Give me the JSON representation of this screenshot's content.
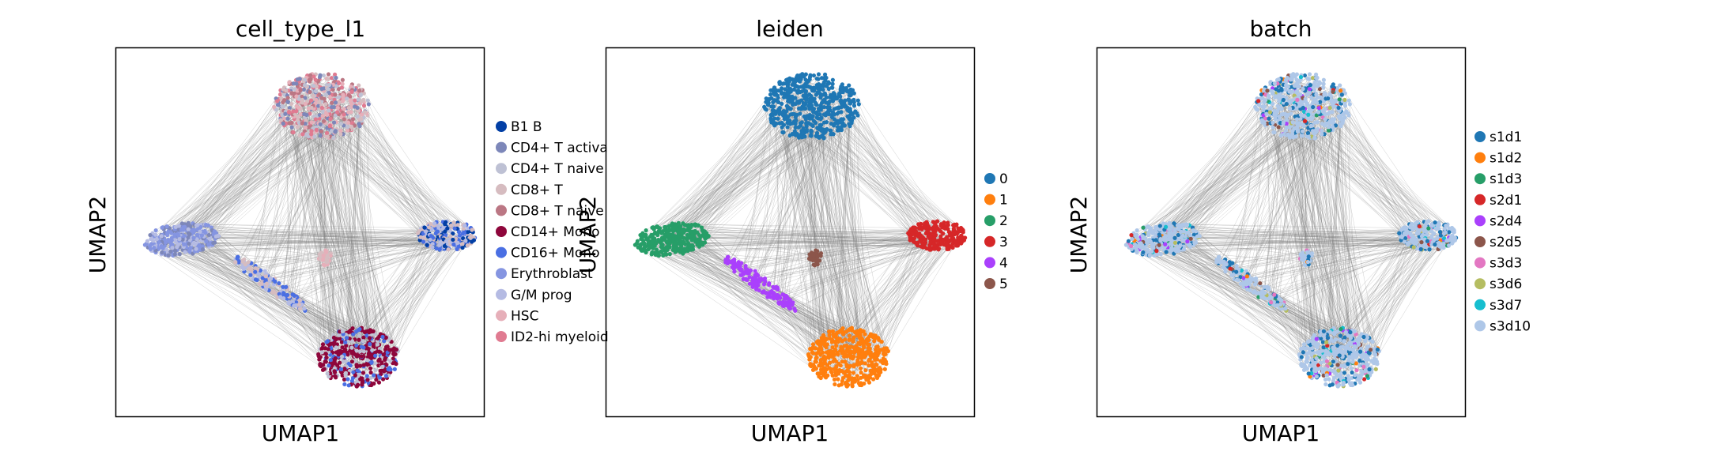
{
  "chart_data": [
    {
      "type": "scatter",
      "title": "cell_type_l1",
      "xlabel": "UMAP1",
      "ylabel": "UMAP2",
      "legend_placement": "right (outside)",
      "grid": false,
      "legend": [
        {
          "label": "B1 B",
          "color": "#023fa5"
        },
        {
          "label": "CD4+ T activa",
          "color": "#7d87b9"
        },
        {
          "label": "CD4+ T naive",
          "color": "#bec1d4"
        },
        {
          "label": "CD8+ T",
          "color": "#d6bcc0"
        },
        {
          "label": "CD8+ T naive",
          "color": "#bb7784"
        },
        {
          "label": "CD14+ Mono",
          "color": "#8e063b"
        },
        {
          "label": "CD16+ Mono",
          "color": "#4a6fe3"
        },
        {
          "label": "Erythroblast",
          "color": "#8595e1"
        },
        {
          "label": "G/M prog",
          "color": "#b5bbe3"
        },
        {
          "label": "HSC",
          "color": "#e6afb9"
        },
        {
          "label": "ID2-hi myeloid",
          "color": "#e07b91"
        }
      ]
    },
    {
      "type": "scatter",
      "title": "leiden",
      "xlabel": "UMAP1",
      "ylabel": "UMAP2",
      "legend_placement": "right (outside)",
      "grid": false,
      "legend": [
        {
          "label": "0",
          "color": "#1f77b4"
        },
        {
          "label": "1",
          "color": "#ff7f0e"
        },
        {
          "label": "2",
          "color": "#279e68"
        },
        {
          "label": "3",
          "color": "#d62728"
        },
        {
          "label": "4",
          "color": "#aa40fc"
        },
        {
          "label": "5",
          "color": "#8c564b"
        }
      ]
    },
    {
      "type": "scatter",
      "title": "batch",
      "xlabel": "UMAP1",
      "ylabel": "UMAP2",
      "legend_placement": "right (outside)",
      "grid": false,
      "legend": [
        {
          "label": "s1d1",
          "color": "#1f77b4"
        },
        {
          "label": "s1d2",
          "color": "#ff7f0e"
        },
        {
          "label": "s1d3",
          "color": "#279e68"
        },
        {
          "label": "s2d1",
          "color": "#d62728"
        },
        {
          "label": "s2d4",
          "color": "#aa40fc"
        },
        {
          "label": "s2d5",
          "color": "#8c564b"
        },
        {
          "label": "s3d3",
          "color": "#e377c2"
        },
        {
          "label": "s3d6",
          "color": "#b5bd61"
        },
        {
          "label": "s3d7",
          "color": "#17becf"
        },
        {
          "label": "s3d10",
          "color": "#aec7e8"
        }
      ]
    }
  ],
  "edge_color": "#808080"
}
